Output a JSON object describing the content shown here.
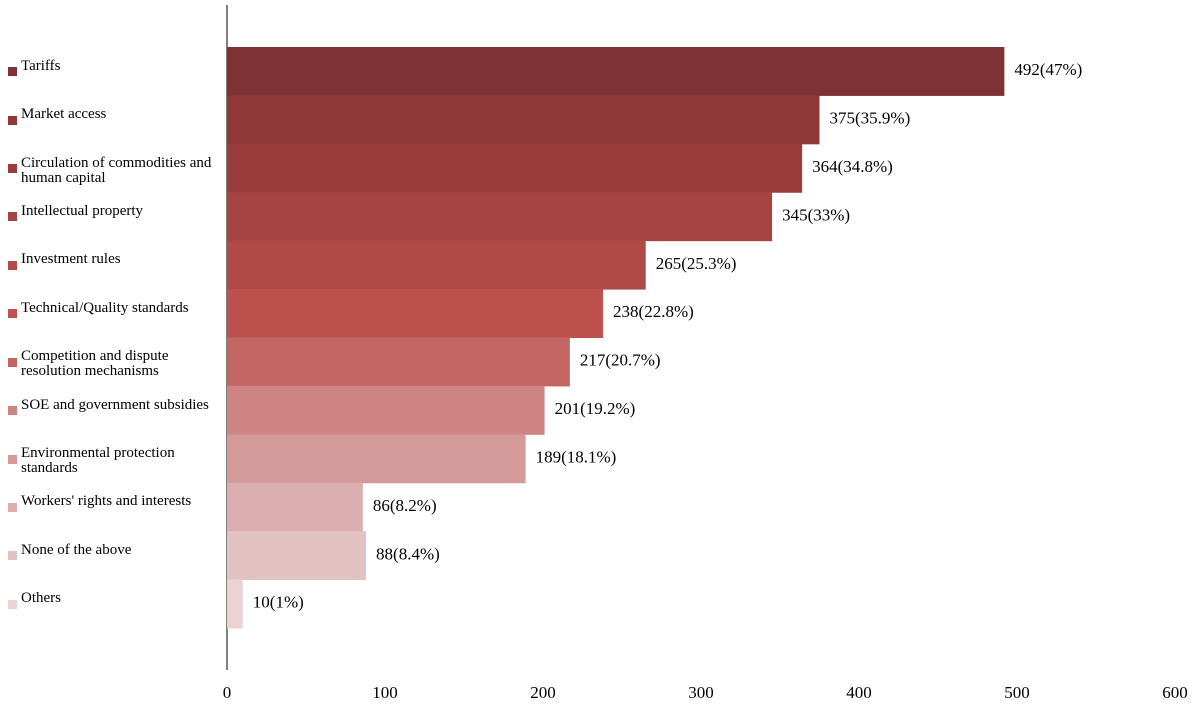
{
  "chart_data": {
    "type": "bar",
    "orientation": "horizontal",
    "categories": [
      "Tariffs",
      "Market access",
      "Circulation of commodities and human capital",
      "Intellectual property",
      "Investment rules",
      "Technical/Quality standards",
      "Competition and dispute resolution mechanisms",
      "SOE and government subsidies",
      "Environmental protection standards",
      "Workers' rights and interests",
      "None of the above",
      "Others"
    ],
    "values": [
      492,
      375,
      364,
      345,
      265,
      238,
      217,
      201,
      189,
      86,
      88,
      10
    ],
    "value_labels": [
      "492(47%)",
      "375(35.9%)",
      "364(34.8%)",
      "345(33%)",
      "265(25.3%)",
      "238(22.8%)",
      "217(20.7%)",
      "201(19.2%)",
      "189(18.1%)",
      "86(8.2%)",
      "88(8.4%)",
      "10(1%)"
    ],
    "colors": [
      "#7f3234",
      "#8e3838",
      "#993d3c",
      "#a34342",
      "#af4a47",
      "#bc514e",
      "#c36663",
      "#cd8482",
      "#d39a99",
      "#dbafaf",
      "#e2c2c2",
      "#ecd3d3"
    ],
    "xlim": [
      0,
      600
    ],
    "xticks": [
      0,
      100,
      200,
      300,
      400,
      500,
      600
    ],
    "grid": false
  }
}
